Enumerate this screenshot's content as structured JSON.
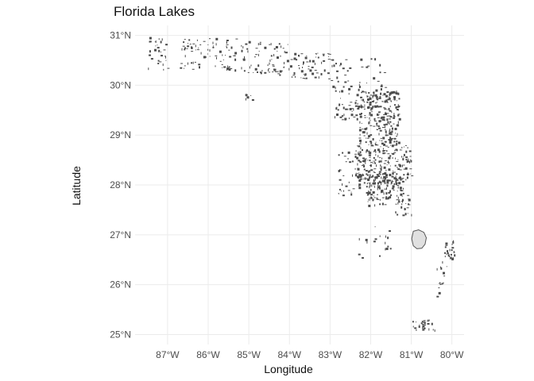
{
  "title": "Florida Lakes",
  "chart_data": {
    "type": "map",
    "title": "Florida Lakes",
    "xlabel": "Longitude",
    "ylabel": "Latitude",
    "xlim": [
      -87.8,
      -79.7
    ],
    "ylim": [
      24.8,
      31.2
    ],
    "x_ticks": [
      {
        "value": -87,
        "label": "87°W"
      },
      {
        "value": -86,
        "label": "86°W"
      },
      {
        "value": -85,
        "label": "85°W"
      },
      {
        "value": -84,
        "label": "84°W"
      },
      {
        "value": -83,
        "label": "83°W"
      },
      {
        "value": -82,
        "label": "82°W"
      },
      {
        "value": -81,
        "label": "81°W"
      },
      {
        "value": -80,
        "label": "80°W"
      }
    ],
    "y_ticks": [
      {
        "value": 25,
        "label": "25°N"
      },
      {
        "value": 26,
        "label": "26°N"
      },
      {
        "value": 27,
        "label": "27°N"
      },
      {
        "value": 28,
        "label": "28°N"
      },
      {
        "value": 29,
        "label": "29°N"
      },
      {
        "value": 30,
        "label": "30°N"
      },
      {
        "value": 31,
        "label": "31°N"
      }
    ],
    "grid": true,
    "fill_color": "#e0e0e0",
    "outline_color": "#555555",
    "featured_lake": {
      "outline": [
        [
          -80.95,
          27.07
        ],
        [
          -80.82,
          27.1
        ],
        [
          -80.69,
          27.05
        ],
        [
          -80.63,
          26.94
        ],
        [
          -80.66,
          26.81
        ],
        [
          -80.74,
          26.73
        ],
        [
          -80.86,
          26.72
        ],
        [
          -80.95,
          26.78
        ],
        [
          -80.99,
          26.92
        ]
      ]
    },
    "lake_regions": [
      {
        "lon_range": [
          -87.5,
          -87.0
        ],
        "lat_range": [
          30.3,
          30.99
        ],
        "count": 30,
        "seed": 11
      },
      {
        "lon_range": [
          -86.7,
          -85.3
        ],
        "lat_range": [
          30.3,
          30.95
        ],
        "count": 80,
        "seed": 12
      },
      {
        "lon_range": [
          -85.2,
          -84.0
        ],
        "lat_range": [
          30.2,
          30.9
        ],
        "count": 70,
        "seed": 13
      },
      {
        "lon_range": [
          -84.0,
          -83.0
        ],
        "lat_range": [
          30.1,
          30.65
        ],
        "count": 60,
        "seed": 14
      },
      {
        "lon_range": [
          -83.0,
          -81.6
        ],
        "lat_range": [
          29.9,
          30.55
        ],
        "count": 45,
        "seed": 15
      },
      {
        "lon_range": [
          -85.1,
          -84.9
        ],
        "lat_range": [
          29.7,
          29.85
        ],
        "count": 6,
        "seed": 16
      },
      {
        "lon_range": [
          -82.9,
          -82.3
        ],
        "lat_range": [
          29.3,
          29.9
        ],
        "count": 40,
        "seed": 17
      },
      {
        "lon_range": [
          -82.3,
          -81.3
        ],
        "lat_range": [
          28.8,
          29.9
        ],
        "count": 260,
        "seed": 18
      },
      {
        "lon_range": [
          -82.4,
          -81.0
        ],
        "lat_range": [
          28.1,
          28.8
        ],
        "count": 200,
        "seed": 19
      },
      {
        "lon_range": [
          -82.8,
          -82.0
        ],
        "lat_range": [
          27.8,
          28.7
        ],
        "count": 60,
        "seed": 20
      },
      {
        "lon_range": [
          -82.1,
          -81.2
        ],
        "lat_range": [
          27.6,
          28.2
        ],
        "count": 120,
        "seed": 21
      },
      {
        "lon_range": [
          -81.4,
          -81.0
        ],
        "lat_range": [
          27.4,
          27.8
        ],
        "count": 25,
        "seed": 22
      },
      {
        "lon_range": [
          -82.4,
          -81.5
        ],
        "lat_range": [
          26.5,
          27.2
        ],
        "count": 18,
        "seed": 23
      },
      {
        "lon_range": [
          -80.2,
          -79.95
        ],
        "lat_range": [
          26.5,
          26.9
        ],
        "count": 25,
        "seed": 24
      },
      {
        "lon_range": [
          -80.4,
          -80.1
        ],
        "lat_range": [
          25.7,
          26.5
        ],
        "count": 15,
        "seed": 25
      },
      {
        "lon_range": [
          -81.0,
          -80.4
        ],
        "lat_range": [
          25.1,
          25.3
        ],
        "count": 28,
        "seed": 26
      }
    ]
  }
}
